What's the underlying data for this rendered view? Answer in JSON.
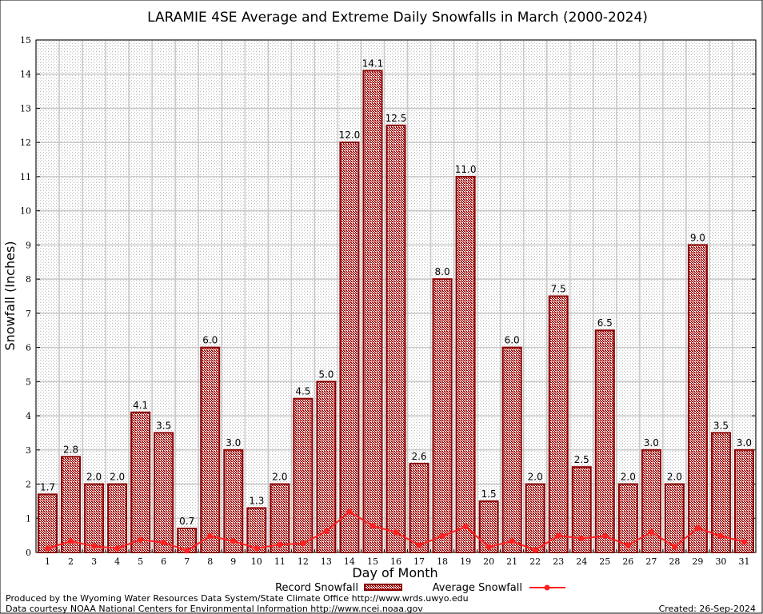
{
  "chart_data": {
    "type": "bar",
    "title": "LARAMIE 4SE Average and Extreme Daily Snowfalls in March (2000-2024)",
    "xlabel": "Day of Month",
    "ylabel": "Snowfall (Inches)",
    "ylim": [
      0,
      15
    ],
    "yticks": [
      0,
      1,
      2,
      3,
      4,
      5,
      6,
      7,
      8,
      9,
      10,
      11,
      12,
      13,
      14,
      15
    ],
    "grid": true,
    "legend_position": "bottom-center",
    "categories": [
      "1",
      "2",
      "3",
      "4",
      "5",
      "6",
      "7",
      "8",
      "9",
      "10",
      "11",
      "12",
      "13",
      "14",
      "15",
      "16",
      "17",
      "18",
      "19",
      "20",
      "21",
      "22",
      "23",
      "24",
      "25",
      "26",
      "27",
      "28",
      "29",
      "30",
      "31"
    ],
    "series": [
      {
        "name": "Record Snowfall",
        "type": "bar",
        "color": "#8b0000",
        "values": [
          1.7,
          2.8,
          2.0,
          2.0,
          4.1,
          3.5,
          0.7,
          6.0,
          3.0,
          1.3,
          2.0,
          4.5,
          5.0,
          12.0,
          14.1,
          12.5,
          2.6,
          8.0,
          11.0,
          1.5,
          6.0,
          2.0,
          7.5,
          2.5,
          6.5,
          2.0,
          3.0,
          2.0,
          9.0,
          3.5,
          3.0
        ],
        "labels": [
          "1.7",
          "2.8",
          "2.0",
          "2.0",
          "4.1",
          "3.5",
          "0.7",
          "6.0",
          "3.0",
          "1.3",
          "2.0",
          "4.5",
          "5.0",
          "12.0",
          "14.1",
          "12.5",
          "2.6",
          "8.0",
          "11.0",
          "1.5",
          "6.0",
          "2.0",
          "7.5",
          "2.5",
          "6.5",
          "2.0",
          "3.0",
          "2.0",
          "9.0",
          "3.5",
          "3.0"
        ]
      },
      {
        "name": "Average Snowfall",
        "type": "line",
        "color": "#ff2020",
        "values": [
          0.12,
          0.33,
          0.18,
          0.12,
          0.37,
          0.29,
          0.05,
          0.48,
          0.33,
          0.12,
          0.23,
          0.26,
          0.62,
          1.19,
          0.78,
          0.59,
          0.21,
          0.48,
          0.75,
          0.16,
          0.33,
          0.07,
          0.49,
          0.41,
          0.48,
          0.21,
          0.6,
          0.17,
          0.71,
          0.48,
          0.31
        ]
      }
    ]
  },
  "footer": {
    "credit1": "Produced by the Wyoming Water Resources Data System/State Climate Office http://www.wrds.uwyo.edu",
    "credit2": "Data courtesy NOAA National Centers for Environmental Information http://www.ncei.noaa.gov",
    "created": "Created:  26-Sep-2024"
  }
}
